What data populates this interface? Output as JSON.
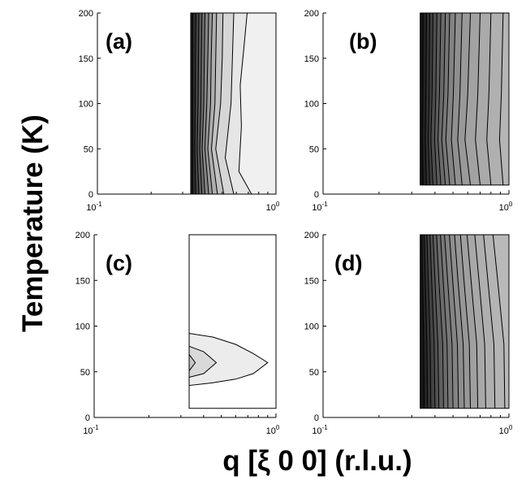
{
  "figure": {
    "ylabel": "Temperature (K)",
    "xlabel": "q [ξ 0 0] (r.l.u.)"
  },
  "chart_data": [
    {
      "type": "heatmap",
      "panel": "(a)",
      "x_scale": "log",
      "xlim": [
        0.1,
        1.0
      ],
      "ylim": [
        0,
        200
      ],
      "xticks": [
        {
          "base": "10",
          "exp": "-1"
        },
        {
          "base": "10",
          "exp": "0"
        }
      ],
      "yticks": [
        "0",
        "50",
        "100",
        "150",
        "200"
      ],
      "data_extent": {
        "x": [
          0.333,
          1.0
        ],
        "y": [
          0,
          200
        ]
      },
      "contour_lines": [
        [
          [
            0.342,
            0
          ],
          [
            0.342,
            50
          ],
          [
            0.342,
            100
          ],
          [
            0.342,
            150
          ],
          [
            0.342,
            200
          ]
        ],
        [
          [
            0.355,
            0
          ],
          [
            0.351,
            50
          ],
          [
            0.353,
            100
          ],
          [
            0.354,
            150
          ],
          [
            0.356,
            200
          ]
        ],
        [
          [
            0.37,
            0
          ],
          [
            0.362,
            50
          ],
          [
            0.366,
            100
          ],
          [
            0.368,
            150
          ],
          [
            0.37,
            200
          ]
        ],
        [
          [
            0.385,
            0
          ],
          [
            0.374,
            50
          ],
          [
            0.38,
            100
          ],
          [
            0.382,
            150
          ],
          [
            0.385,
            200
          ]
        ],
        [
          [
            0.4,
            0
          ],
          [
            0.386,
            50
          ],
          [
            0.394,
            100
          ],
          [
            0.397,
            150
          ],
          [
            0.4,
            200
          ]
        ],
        [
          [
            0.42,
            0
          ],
          [
            0.4,
            50
          ],
          [
            0.41,
            100
          ],
          [
            0.415,
            150
          ],
          [
            0.42,
            200
          ]
        ],
        [
          [
            0.44,
            0
          ],
          [
            0.415,
            50
          ],
          [
            0.43,
            100
          ],
          [
            0.434,
            150
          ],
          [
            0.44,
            200
          ]
        ],
        [
          [
            0.47,
            0
          ],
          [
            0.435,
            50
          ],
          [
            0.455,
            100
          ],
          [
            0.46,
            150
          ],
          [
            0.465,
            200
          ]
        ],
        [
          [
            0.51,
            0
          ],
          [
            0.46,
            50
          ],
          [
            0.49,
            100
          ],
          [
            0.5,
            150
          ],
          [
            0.505,
            200
          ]
        ],
        [
          [
            0.58,
            0
          ],
          [
            0.52,
            40
          ],
          [
            0.56,
            100
          ],
          [
            0.57,
            150
          ],
          [
            0.58,
            200
          ]
        ],
        [
          [
            0.73,
            0
          ],
          [
            0.62,
            25
          ],
          [
            0.64,
            75
          ],
          [
            0.63,
            120
          ],
          [
            0.66,
            160
          ],
          [
            0.69,
            200
          ]
        ]
      ],
      "shading": [
        "#1a1a1a",
        "#2f2f2f",
        "#454545",
        "#5a5a5a",
        "#6f6f6f",
        "#848484",
        "#999999",
        "#adadad",
        "#c2c2c2",
        "#d6d6d6",
        "#e6e6e6",
        "#f0f0f0"
      ]
    },
    {
      "type": "heatmap",
      "panel": "(b)",
      "x_scale": "log",
      "xlim": [
        0.1,
        1.0
      ],
      "ylim": [
        0,
        200
      ],
      "xticks": [
        {
          "base": "10",
          "exp": "-1"
        },
        {
          "base": "10",
          "exp": "0"
        }
      ],
      "yticks": [
        "0",
        "50",
        "100",
        "150",
        "200"
      ],
      "data_extent": {
        "x": [
          0.333,
          1.0
        ],
        "y": [
          10,
          200
        ]
      },
      "contour_lines": [
        [
          [
            0.345,
            10
          ],
          [
            0.342,
            60
          ],
          [
            0.344,
            110
          ],
          [
            0.345,
            200
          ]
        ],
        [
          [
            0.36,
            10
          ],
          [
            0.355,
            60
          ],
          [
            0.358,
            110
          ],
          [
            0.36,
            200
          ]
        ],
        [
          [
            0.375,
            10
          ],
          [
            0.368,
            60
          ],
          [
            0.372,
            110
          ],
          [
            0.375,
            200
          ]
        ],
        [
          [
            0.39,
            10
          ],
          [
            0.38,
            60
          ],
          [
            0.386,
            110
          ],
          [
            0.39,
            200
          ]
        ],
        [
          [
            0.41,
            10
          ],
          [
            0.398,
            60
          ],
          [
            0.404,
            110
          ],
          [
            0.41,
            200
          ]
        ],
        [
          [
            0.43,
            10
          ],
          [
            0.415,
            60
          ],
          [
            0.423,
            110
          ],
          [
            0.43,
            200
          ]
        ],
        [
          [
            0.455,
            10
          ],
          [
            0.435,
            60
          ],
          [
            0.446,
            110
          ],
          [
            0.455,
            200
          ]
        ],
        [
          [
            0.48,
            10
          ],
          [
            0.458,
            60
          ],
          [
            0.47,
            110
          ],
          [
            0.48,
            200
          ]
        ],
        [
          [
            0.515,
            10
          ],
          [
            0.49,
            60
          ],
          [
            0.502,
            110
          ],
          [
            0.515,
            200
          ]
        ],
        [
          [
            0.56,
            10
          ],
          [
            0.53,
            60
          ],
          [
            0.545,
            110
          ],
          [
            0.56,
            200
          ]
        ],
        [
          [
            0.62,
            10
          ],
          [
            0.58,
            60
          ],
          [
            0.6,
            110
          ],
          [
            0.62,
            200
          ]
        ],
        [
          [
            0.7,
            10
          ],
          [
            0.66,
            60
          ],
          [
            0.68,
            110
          ],
          [
            0.7,
            200
          ]
        ],
        [
          [
            0.8,
            10
          ],
          [
            0.76,
            60
          ],
          [
            0.78,
            110
          ],
          [
            0.8,
            200
          ]
        ],
        [
          [
            0.93,
            10
          ],
          [
            0.89,
            60
          ],
          [
            0.91,
            110
          ],
          [
            0.93,
            200
          ]
        ]
      ],
      "shading": [
        "#141414",
        "#222222",
        "#313131",
        "#404040",
        "#4e4e4e",
        "#5c5c5c",
        "#6a6a6a",
        "#777777",
        "#838383",
        "#8f8f8f",
        "#999999",
        "#a2a2a2",
        "#aaaaaa",
        "#b0b0b0",
        "#b5b5b5"
      ]
    },
    {
      "type": "heatmap",
      "panel": "(c)",
      "x_scale": "log",
      "xlim": [
        0.1,
        1.0
      ],
      "ylim": [
        0,
        200
      ],
      "xticks": [
        {
          "base": "10",
          "exp": "-1"
        },
        {
          "base": "10",
          "exp": "0"
        }
      ],
      "yticks": [
        "0",
        "50",
        "100",
        "150",
        "200"
      ],
      "data_extent": {
        "x": [
          0.333,
          1.0
        ],
        "y": [
          10,
          200
        ]
      },
      "contour_regions": [
        [
          [
            0.333,
            92
          ],
          [
            0.45,
            88
          ],
          [
            0.6,
            80
          ],
          [
            0.75,
            70
          ],
          [
            0.9,
            60
          ],
          [
            0.75,
            48
          ],
          [
            0.6,
            42
          ],
          [
            0.45,
            38
          ],
          [
            0.333,
            35
          ]
        ],
        [
          [
            0.333,
            78
          ],
          [
            0.4,
            72
          ],
          [
            0.47,
            60
          ],
          [
            0.4,
            48
          ],
          [
            0.333,
            44
          ]
        ],
        [
          [
            0.333,
            69
          ],
          [
            0.36,
            60
          ],
          [
            0.333,
            51
          ]
        ]
      ],
      "shading": [
        "#ffffff",
        "#ececec",
        "#d9d9d9",
        "#c6c6c6"
      ]
    },
    {
      "type": "heatmap",
      "panel": "(d)",
      "x_scale": "log",
      "xlim": [
        0.1,
        1.0
      ],
      "ylim": [
        0,
        200
      ],
      "xticks": [
        {
          "base": "10",
          "exp": "-1"
        },
        {
          "base": "10",
          "exp": "0"
        }
      ],
      "yticks": [
        "0",
        "50",
        "100",
        "150",
        "200"
      ],
      "data_extent": {
        "x": [
          0.333,
          1.0
        ],
        "y": [
          10,
          200
        ]
      },
      "contour_lines": [
        [
          [
            0.35,
            10
          ],
          [
            0.348,
            80
          ],
          [
            0.343,
            150
          ],
          [
            0.34,
            200
          ]
        ],
        [
          [
            0.365,
            10
          ],
          [
            0.362,
            80
          ],
          [
            0.355,
            150
          ],
          [
            0.35,
            200
          ]
        ],
        [
          [
            0.38,
            10
          ],
          [
            0.377,
            80
          ],
          [
            0.368,
            150
          ],
          [
            0.362,
            200
          ]
        ],
        [
          [
            0.4,
            10
          ],
          [
            0.396,
            80
          ],
          [
            0.384,
            150
          ],
          [
            0.376,
            200
          ]
        ],
        [
          [
            0.42,
            10
          ],
          [
            0.415,
            80
          ],
          [
            0.4,
            150
          ],
          [
            0.39,
            200
          ]
        ],
        [
          [
            0.445,
            10
          ],
          [
            0.44,
            80
          ],
          [
            0.42,
            150
          ],
          [
            0.408,
            200
          ]
        ],
        [
          [
            0.47,
            10
          ],
          [
            0.465,
            80
          ],
          [
            0.443,
            150
          ],
          [
            0.428,
            200
          ]
        ],
        [
          [
            0.5,
            10
          ],
          [
            0.494,
            80
          ],
          [
            0.468,
            150
          ],
          [
            0.45,
            200
          ]
        ],
        [
          [
            0.535,
            10
          ],
          [
            0.528,
            80
          ],
          [
            0.498,
            150
          ],
          [
            0.478,
            200
          ]
        ],
        [
          [
            0.575,
            10
          ],
          [
            0.567,
            80
          ],
          [
            0.532,
            150
          ],
          [
            0.51,
            200
          ]
        ],
        [
          [
            0.62,
            10
          ],
          [
            0.612,
            80
          ],
          [
            0.573,
            150
          ],
          [
            0.548,
            200
          ]
        ],
        [
          [
            0.68,
            10
          ],
          [
            0.671,
            80
          ],
          [
            0.625,
            150
          ],
          [
            0.595,
            200
          ]
        ],
        [
          [
            0.75,
            10
          ],
          [
            0.74,
            80
          ],
          [
            0.69,
            150
          ],
          [
            0.655,
            200
          ]
        ],
        [
          [
            0.84,
            10
          ],
          [
            0.83,
            80
          ],
          [
            0.77,
            150
          ],
          [
            0.73,
            200
          ]
        ],
        [
          [
            0.95,
            10
          ],
          [
            0.94,
            80
          ],
          [
            0.87,
            150
          ],
          [
            0.82,
            200
          ]
        ]
      ],
      "shading": [
        "#161616",
        "#252525",
        "#343434",
        "#434343",
        "#515151",
        "#5f5f5f",
        "#6c6c6c",
        "#787878",
        "#838383",
        "#8e8e8e",
        "#979797",
        "#a0a0a0",
        "#a8a8a8",
        "#afafaf",
        "#b4b4b4",
        "#b9b9b9"
      ]
    }
  ]
}
